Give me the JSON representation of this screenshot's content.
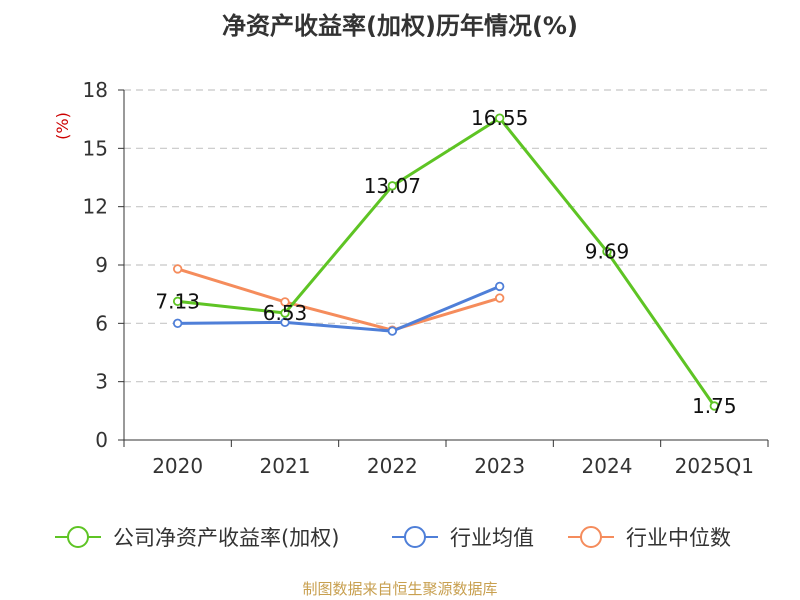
{
  "chart_data": {
    "type": "line",
    "title": "净资产收益率(加权)历年情况(%)",
    "ylabel": "(%)",
    "xlabel": "",
    "categories": [
      "2020",
      "2021",
      "2022",
      "2023",
      "2024",
      "2025Q1"
    ],
    "yticks": [
      0,
      3,
      6,
      9,
      12,
      15,
      18
    ],
    "ylim": [
      0,
      18
    ],
    "grid": "horizontal-dashed",
    "legend_position": "bottom",
    "series": [
      {
        "name": "公司净资产收益率(加权)",
        "color": "#5ec424",
        "values": [
          7.13,
          6.53,
          13.07,
          16.55,
          9.69,
          1.75
        ],
        "labels": [
          "7.13",
          "6.53",
          "13.07",
          "16.55",
          "9.69",
          "1.75"
        ],
        "show_labels": true
      },
      {
        "name": "行业均值",
        "color": "#4f7fd8",
        "values": [
          6.0,
          6.05,
          5.6,
          7.9,
          null,
          null
        ],
        "show_labels": false
      },
      {
        "name": "行业中位数",
        "color": "#f58c5c",
        "values": [
          8.8,
          7.1,
          5.65,
          7.3,
          null,
          null
        ],
        "show_labels": false
      }
    ]
  },
  "source_text": "制图数据来自恒生聚源数据库"
}
